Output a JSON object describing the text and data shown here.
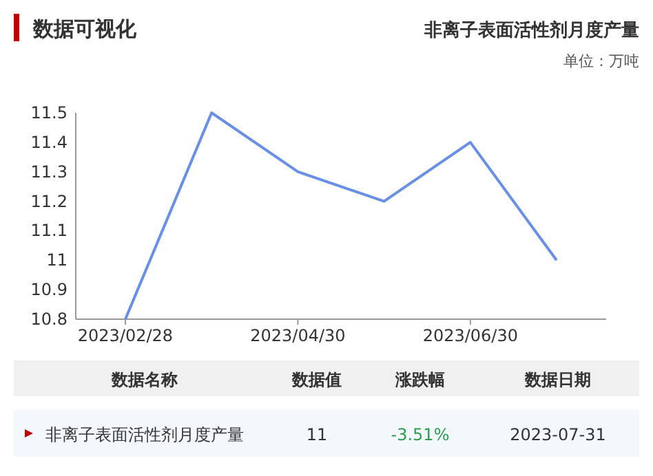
{
  "chart_data": {
    "type": "line",
    "title": "非离子表面活性剂月度产量",
    "subtitle": "单位：万吨",
    "categories": [
      "2023/02/28",
      null,
      "2023/04/30",
      null,
      "2023/06/30",
      null
    ],
    "series": [
      {
        "color": "#6a8fe6",
        "values": [
          10.8,
          11.5,
          11.3,
          11.2,
          11.4,
          11.0
        ]
      }
    ],
    "ylim": [
      10.8,
      11.5
    ],
    "yticks": [
      10.8,
      10.9,
      11,
      11.1,
      11.2,
      11.3,
      11.4,
      11.5
    ],
    "grid": false,
    "marker": "none",
    "line_style": "solid",
    "annotations": [
      "数据可视化",
      "数据名称",
      "数据值",
      "涨跌幅",
      "数据日期",
      "非离子表面活性剂月度产量",
      "11",
      "-3.51%",
      "2023-07-31"
    ]
  }
}
